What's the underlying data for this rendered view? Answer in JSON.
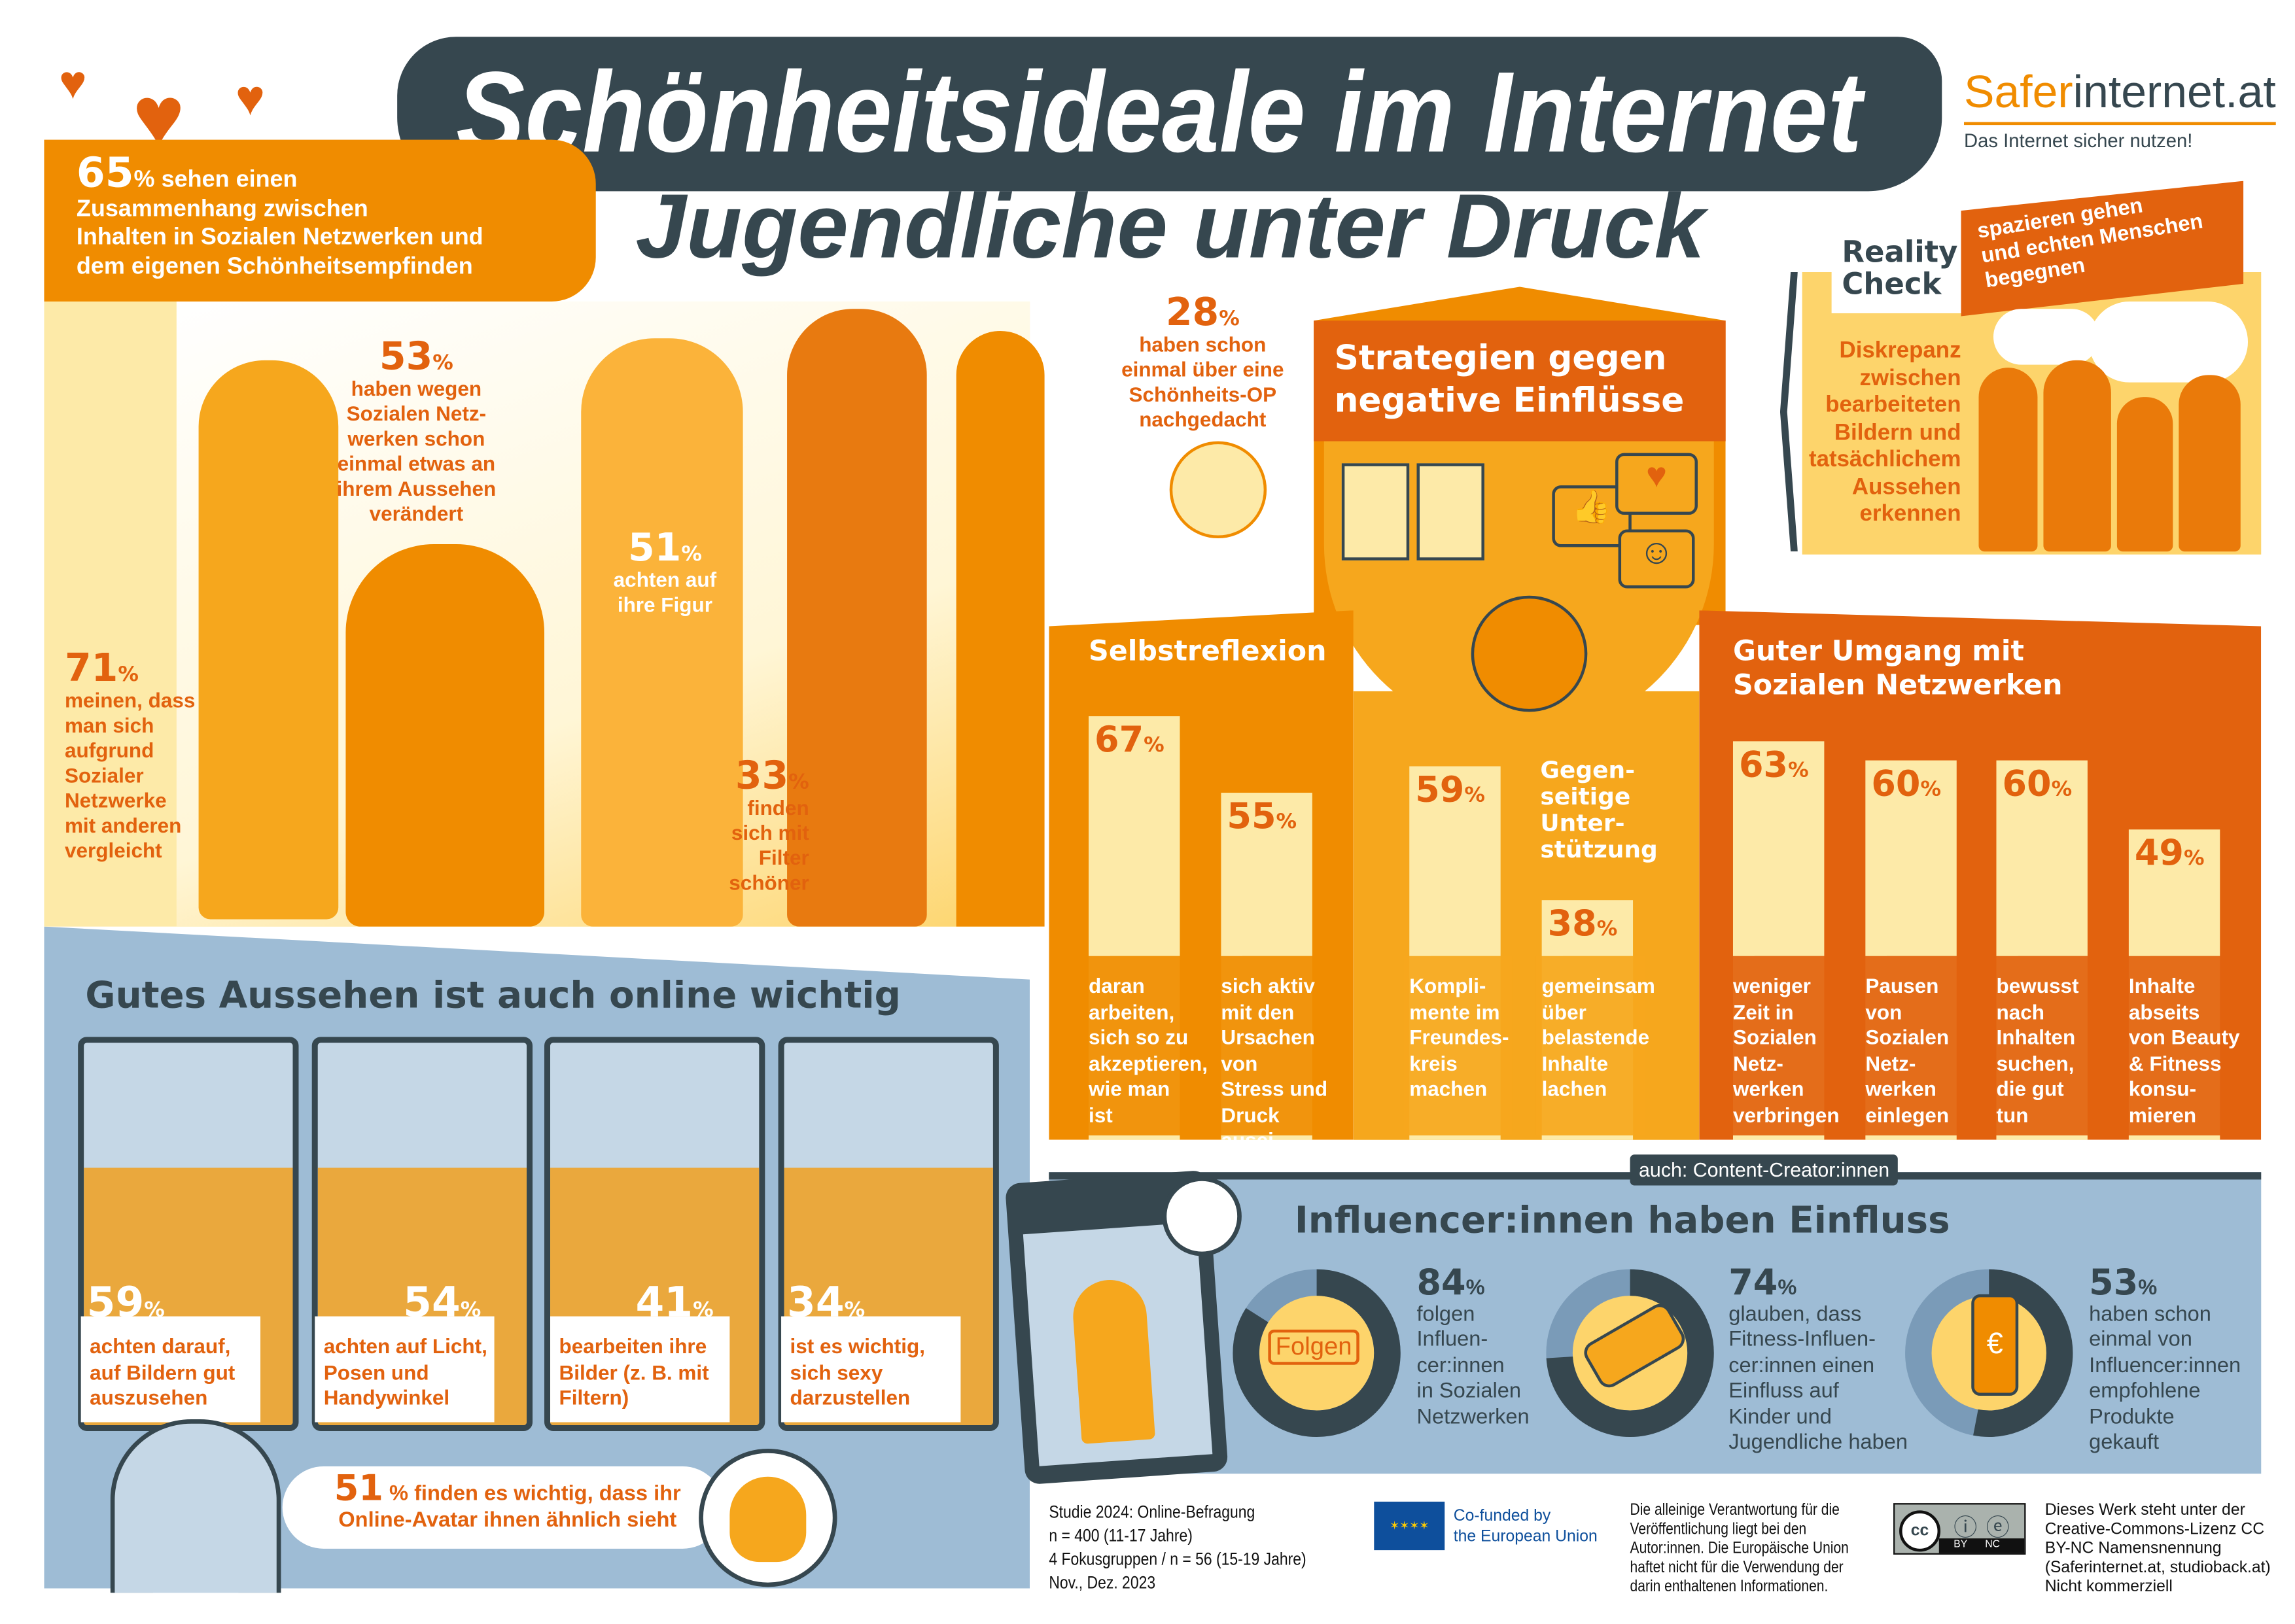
{
  "colors": {
    "dark": "#36474f",
    "orange_dark": "#e2620e",
    "orange": "#f08c00",
    "orange_light": "#f6a71d",
    "yellow": "#fdd46b",
    "pale": "#fdeaa8",
    "blue": "#9ebcd5",
    "eu_blue": "#0e4f9c"
  },
  "header": {
    "title": "Schönheitsideale im Internet",
    "subtitle": "Jugendliche unter Druck"
  },
  "logo": {
    "brand_a": "Safer",
    "brand_b": "internet.at",
    "tagline": "Das Internet sicher nutzen!"
  },
  "intro": {
    "pct": "65",
    "unit": "%",
    "text": "sehen einen\nZusammenhang zwischen\nInhalten in Sozialen Netzwerken und\ndem eigenen Schönheitsempfinden"
  },
  "stats": [
    {
      "pct": "53",
      "unit": "%",
      "text": "haben wegen\nSozialen Netz-\nwerken schon\neinmal etwas an\nihrem Aussehen\nverändert"
    },
    {
      "pct": "51",
      "unit": "%",
      "text": "achten auf\nihre Figur"
    },
    {
      "pct": "28",
      "unit": "%",
      "text": "haben schon\neinmal über eine\nSchönheits-OP\nnachgedacht"
    },
    {
      "pct": "71",
      "unit": "%",
      "text": "meinen, dass\nman sich\naufgrund\nSozialer\nNetzwerke\nmit anderen\nvergleicht"
    },
    {
      "pct": "33",
      "unit": "%",
      "text": "finden\nsich mit\nFilter\nschöner"
    }
  ],
  "online": {
    "heading": "Gutes Aussehen ist auch online wichtig",
    "cards": [
      {
        "pct": "59",
        "unit": "%",
        "text": "achten darauf,\nauf Bildern gut\nauszusehen"
      },
      {
        "pct": "54",
        "unit": "%",
        "text": "achten auf Licht,\nPosen und\nHandywinkel"
      },
      {
        "pct": "41",
        "unit": "%",
        "text": "bearbeiten ihre\nBilder (z. B. mit\nFiltern)"
      },
      {
        "pct": "34",
        "unit": "%",
        "text": "ist es wichtig,\nsich sexy\ndarzustellen"
      }
    ],
    "avatar": {
      "pct": "51",
      "unit": "%",
      "text1": "finden es wichtig, dass ihr",
      "text2": "Online-Avatar ihnen ähnlich sieht"
    }
  },
  "strategies": {
    "heading": "Strategien gegen\nnegative Einflüsse",
    "columns": [
      {
        "title": "Selbstreflexion",
        "bars": [
          {
            "value": 67,
            "label": "daran\narbeiten,\nsich so zu\nakzeptieren,\nwie man\nist"
          },
          {
            "value": 55,
            "label": "sich aktiv\nmit den\nUrsachen von\nStress und\nDruck ausei-\nnandersetzen"
          }
        ]
      },
      {
        "title": "Gegen-\nseitige\nUnter-\nstützung",
        "bars": [
          {
            "value": 59,
            "label": "Kompli-\nmente im\nFreundes-\nkreis\nmachen"
          },
          {
            "value": 38,
            "label": "gemeinsam\nüber\nbelastende\nInhalte\nlachen"
          }
        ]
      },
      {
        "title": "Guter Umgang mit\nSozialen Netzwerken",
        "bars": [
          {
            "value": 63,
            "label": "weniger\nZeit in\nSozialen\nNetz-\nwerken\nverbringen"
          },
          {
            "value": 60,
            "label": "Pausen\nvon\nSozialen\nNetz-\nwerken\neinlegen"
          },
          {
            "value": 60,
            "label": "bewusst\nnach\nInhalten\nsuchen,\ndie gut\ntun"
          },
          {
            "value": 49,
            "label": "Inhalte\nabseits\nvon Beauty\n& Fitness\nkonsu-\nmieren"
          }
        ]
      }
    ],
    "unit": "%"
  },
  "reality": {
    "title": "Reality\nCheck",
    "banner": "spazieren gehen\nund echten Menschen\nbegegnen",
    "text": "Diskrepanz\nzwischen\nbearbeiteten\nBildern und\ntatsächlichem\nAussehen\nerkennen"
  },
  "influencer": {
    "heading": "Influencer:innen haben Einfluss",
    "tag": "auch: Content-Creator:innen",
    "follow_label": "Folgen",
    "items": [
      {
        "value": 84,
        "unit": "%",
        "text": "folgen\nInfluen-\ncer:innen\nin Sozialen\nNetzwerken"
      },
      {
        "value": 74,
        "unit": "%",
        "text": "glauben, dass\nFitness-Influen-\ncer:innen einen\nEinfluss auf\nKinder und\nJugendliche haben"
      },
      {
        "value": 53,
        "unit": "%",
        "text": "haben schon\neinmal von\nInfluencer:innen\nempfohlene\nProdukte\ngekauft"
      }
    ]
  },
  "footer": {
    "study": "Studie 2024: Online-Befragung\nn = 400 (11-17 Jahre)\n4 Fokusgruppen / n = 56 (15-19 Jahre)\nNov., Dez. 2023",
    "eu": "Co-funded by\nthe European Union",
    "disclaimer": "Die alleinige Verantwortung für die\nVeröffentlichung liegt bei den\nAutor:innen. Die Europäische Union\nhaftet nicht für die Verwendung der\ndarin enthaltenen Informationen.",
    "cc_by": "BY",
    "cc_nc": "NC",
    "cc": "cc",
    "license": "Dieses Werk steht unter der\nCreative-Commons-Lizenz CC\nBY-NC Namensnennung\n(Saferinternet.at, studioback.at)\nNicht kommerziell"
  }
}
